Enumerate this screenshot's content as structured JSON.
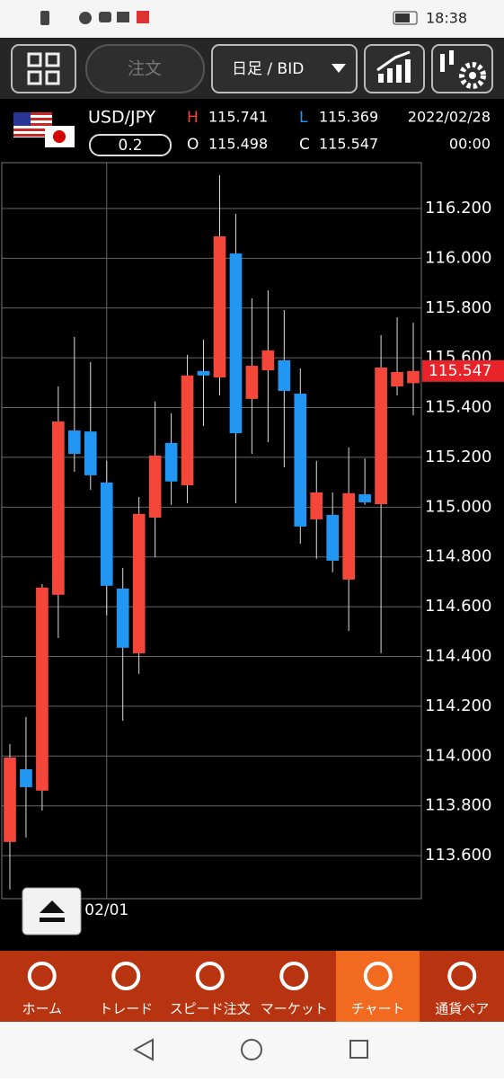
{
  "status_bar": {
    "time": "18:38"
  },
  "toolbar": {
    "order": "注文",
    "timeframe": "日足 / BID"
  },
  "header": {
    "symbol": "USD/JPY",
    "spread": "0.2",
    "high_label": "H",
    "high": "115.741",
    "low_label": "L",
    "low": "115.369",
    "open_label": "O",
    "open": "115.498",
    "close_label": "C",
    "close": "115.547",
    "date": "2022/02/28",
    "time": "00:00"
  },
  "chart_data": {
    "type": "candlestick",
    "categories": [
      null,
      null,
      null,
      null,
      null,
      null,
      "02/01",
      null,
      null,
      null,
      null,
      null,
      null,
      null,
      null,
      null,
      null,
      null,
      null,
      null,
      null,
      null,
      null,
      null,
      null,
      null
    ],
    "open": [
      113.655,
      113.947,
      113.861,
      114.648,
      115.308,
      115.304,
      115.099,
      114.673,
      114.413,
      114.958,
      115.258,
      115.088,
      115.547,
      115.521,
      116.019,
      115.435,
      115.55,
      115.59,
      115.456,
      114.951,
      114.969,
      114.709,
      115.052,
      115.012,
      115.485,
      115.498
    ],
    "high": [
      114.048,
      114.157,
      114.691,
      115.485,
      115.684,
      115.583,
      115.186,
      114.756,
      115.041,
      115.424,
      115.377,
      115.612,
      115.673,
      116.334,
      116.178,
      115.839,
      115.871,
      115.792,
      115.557,
      115.186,
      115.059,
      115.24,
      115.196,
      115.691,
      115.763,
      115.741
    ],
    "low": [
      113.464,
      113.673,
      113.781,
      114.474,
      115.142,
      115.07,
      114.565,
      114.142,
      114.33,
      114.799,
      115.009,
      115.016,
      115.326,
      115.449,
      115.016,
      115.214,
      115.261,
      115.16,
      114.853,
      114.792,
      114.738,
      114.503,
      115.009,
      114.413,
      115.449,
      115.369
    ],
    "close": [
      113.994,
      113.875,
      114.677,
      115.344,
      115.214,
      115.128,
      114.684,
      114.435,
      114.973,
      115.207,
      115.103,
      115.529,
      115.529,
      116.088,
      115.297,
      115.568,
      115.63,
      115.467,
      114.922,
      115.059,
      114.785,
      115.056,
      115.019,
      115.561,
      115.543,
      115.547
    ],
    "up_color": "#f4473a",
    "down_color": "#2196f3",
    "ylim": [
      113.427,
      116.384
    ],
    "yticks": [
      {
        "value": 113.6,
        "label": "113.600"
      },
      {
        "value": 113.8,
        "label": "113.800"
      },
      {
        "value": 114,
        "label": "114.000"
      },
      {
        "value": 114.2,
        "label": "114.200"
      },
      {
        "value": 114.4,
        "label": "114.400"
      },
      {
        "value": 114.6,
        "label": "114.600"
      },
      {
        "value": 114.8,
        "label": "114.800"
      },
      {
        "value": 115,
        "label": "115.000"
      },
      {
        "value": 115.2,
        "label": "115.200"
      },
      {
        "value": 115.4,
        "label": "115.400"
      },
      {
        "value": 115.6,
        "label": "115.600"
      },
      {
        "value": 115.8,
        "label": "115.800"
      },
      {
        "value": 116,
        "label": "116.000"
      },
      {
        "value": 116.2,
        "label": "116.200"
      }
    ],
    "grid": true,
    "last_price": 115.547,
    "last_price_color": "#e8232a"
  },
  "nav": [
    "ホーム",
    "トレード",
    "スピード注文",
    "マーケット",
    "チャート",
    "通貨ペア"
  ]
}
